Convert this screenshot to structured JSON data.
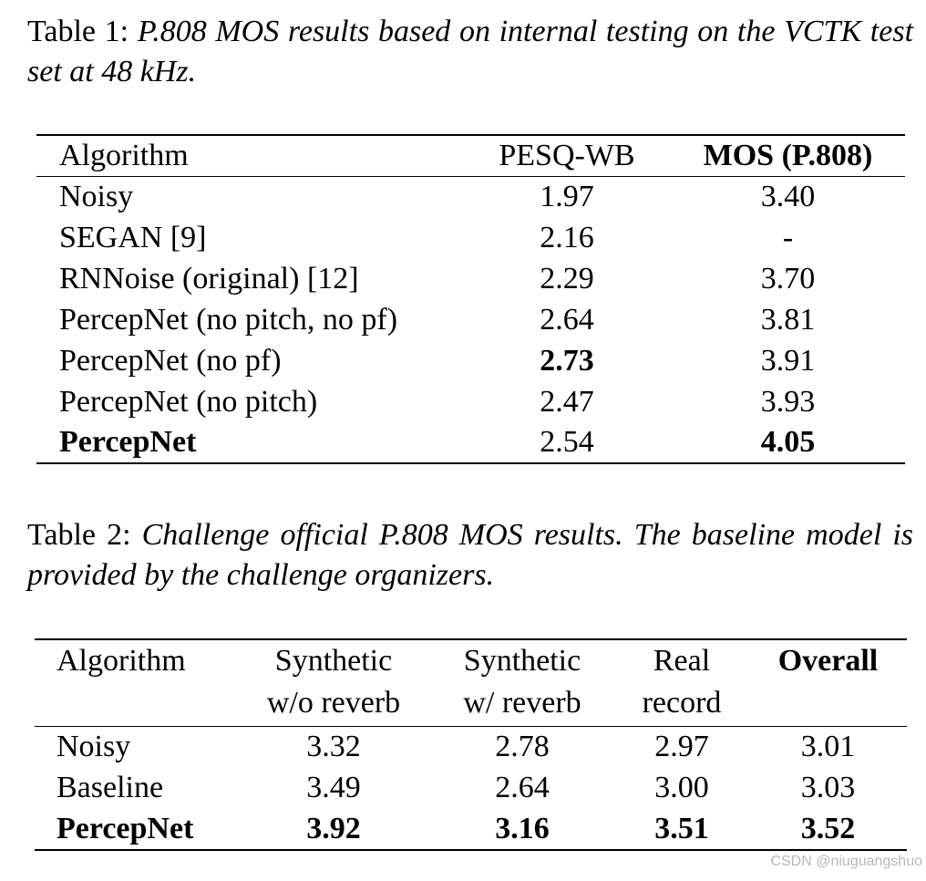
{
  "table1": {
    "label": "Table 1:",
    "caption": "P.808 MOS results based on internal testing on the VCTK test set at 48 kHz.",
    "headers": [
      "Algorithm",
      "PESQ-WB",
      "MOS (P.808)"
    ],
    "rows": [
      [
        "Noisy",
        "1.97",
        "3.40"
      ],
      [
        "SEGAN [9]",
        "2.16",
        "-"
      ],
      [
        "RNNoise (original) [12]",
        "2.29",
        "3.70"
      ],
      [
        "PercepNet (no pitch, no pf)",
        "2.64",
        "3.81"
      ],
      [
        "PercepNet (no pf)",
        "2.73",
        "3.91"
      ],
      [
        "PercepNet (no pitch)",
        "2.47",
        "3.93"
      ],
      [
        "PercepNet",
        "2.54",
        "4.05"
      ]
    ]
  },
  "table2": {
    "label": "Table 2:",
    "caption": "Challenge official P.808 MOS results.  The baseline model is provided by the challenge organizers.",
    "headers": [
      [
        "Algorithm",
        ""
      ],
      [
        "Synthetic",
        "w/o reverb"
      ],
      [
        "Synthetic",
        "w/ reverb"
      ],
      [
        "Real",
        "record"
      ],
      [
        "Overall",
        ""
      ]
    ],
    "rows": [
      [
        "Noisy",
        "3.32",
        "2.78",
        "2.97",
        "3.01"
      ],
      [
        "Baseline",
        "3.49",
        "2.64",
        "3.00",
        "3.03"
      ],
      [
        "PercepNet",
        "3.92",
        "3.16",
        "3.51",
        "3.52"
      ]
    ]
  },
  "watermark": "CSDN @niuguangshuo"
}
